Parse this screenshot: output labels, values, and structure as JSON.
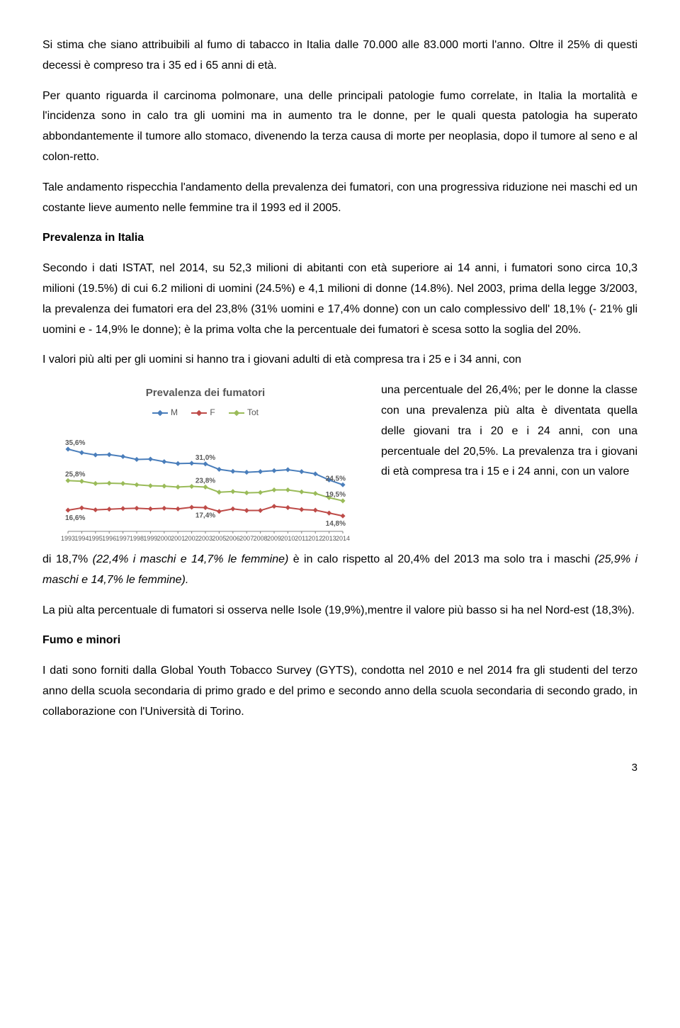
{
  "para1": "Si stima che siano attribuibili al fumo di tabacco in Italia dalle 70.000 alle 83.000 morti l'anno. Oltre il 25% di questi decessi è compreso tra i 35 ed i 65 anni di età.",
  "para2": "Per quanto riguarda il carcinoma polmonare, una delle principali patologie fumo correlate, in Italia la mortalità e l'incidenza sono in calo tra gli uomini ma in aumento tra le donne, per le quali questa patologia ha superato abbondantemente il tumore allo stomaco, divenendo la terza causa di morte per neoplasia, dopo il tumore al seno e al colon-retto.",
  "para3": "Tale andamento rispecchia l'andamento della prevalenza dei fumatori, con una progressiva riduzione nei maschi ed un costante lieve aumento nelle femmine tra il 1993 ed il 2005.",
  "title_prev": "Prevalenza in Italia",
  "para4a": "Secondo i dati ISTAT, nel 2014, su 52,3 milioni di abitanti con età superiore ai 14 anni, i fumatori sono circa 10,3 milioni (19.5%) di cui 6.2 milioni di uomini (24.5%) e 4,1 milioni di donne (14.8%). ",
  "para4b": "Nel 2003, prima della legge 3/2003, la prevalenza dei fumatori era del 23,8% (31% uomini e 17,4% donne) con un calo complessivo dell' 18,1% (- 21% gli uomini e - 14,9% le donne); è la prima volta che la percentuale dei fumatori è scesa sotto la soglia del 20%.",
  "para5_lead": "I valori più alti per gli uomini si hanno tra i giovani adulti di età compresa tra i 25 e i 34 anni, con ",
  "para5_wrap": "una percentuale del 26,4%; per le donne la classe con una prevalenza più alta è diventata quella delle giovani tra i 20 e i 24 anni, con una percentuale del 20,5%. La prevalenza tra i giovani di età compresa tra i 15 e i 24 anni, con un valore ",
  "para5_tail_a": "di 18,7% ",
  "para5_tail_b": "(22,4% i maschi e 14,7% le femmine)",
  "para5_tail_c": " è in calo rispetto al 20,4% del 2013 ma solo tra i maschi ",
  "para5_tail_d": "(25,9% i maschi e 14,7% le femmine).",
  "para6": "La più alta percentuale di fumatori si osserva nelle Isole (19,9%),mentre il valore più basso si ha nel Nord-est (18,3%).",
  "title_minori": "Fumo e minori",
  "para7": "I dati sono forniti dalla Global Youth Tobacco Survey (GYTS), condotta nel 2010 e nel 2014 fra gli studenti del terzo anno della scuola secondaria di primo grado e del primo e secondo anno della scuola secondaria di secondo grado, in collaborazione con l'Università di Torino.",
  "page_number": "3",
  "chart": {
    "title": "Prevalenza dei fumatori",
    "legend": {
      "m": "M",
      "f": "F",
      "tot": "Tot"
    },
    "colors": {
      "m": "#4a7ebb",
      "f": "#be4b48",
      "tot": "#9abb59",
      "axis": "#828282",
      "label": "#595959"
    },
    "years": [
      "1993",
      "1994",
      "1995",
      "1996",
      "1997",
      "1998",
      "1999",
      "2000",
      "2001",
      "2002",
      "2003",
      "2005",
      "2006",
      "2007",
      "2008",
      "2009",
      "2010",
      "2011",
      "2012",
      "2013",
      "2014"
    ],
    "series": {
      "m": [
        35.6,
        34.5,
        33.8,
        33.9,
        33.3,
        32.4,
        32.5,
        31.7,
        31.1,
        31.2,
        31.0,
        29.3,
        28.7,
        28.4,
        28.6,
        28.9,
        29.2,
        28.6,
        27.9,
        26.0,
        24.5
      ],
      "tot": [
        25.8,
        25.6,
        24.9,
        25.0,
        24.9,
        24.5,
        24.2,
        24.1,
        23.8,
        24.0,
        23.8,
        22.2,
        22.4,
        22.0,
        22.1,
        22.9,
        22.9,
        22.3,
        21.8,
        20.5,
        19.5
      ],
      "f": [
        16.6,
        17.3,
        16.7,
        16.9,
        17.1,
        17.2,
        17.0,
        17.2,
        17.0,
        17.5,
        17.4,
        16.2,
        17.0,
        16.5,
        16.5,
        17.8,
        17.4,
        16.8,
        16.6,
        15.7,
        14.8
      ]
    },
    "annotations": {
      "m_start": "35,6%",
      "tot_start": "25,8%",
      "f_start": "16,6%",
      "m_mid": "31,0%",
      "tot_mid": "23,8%",
      "f_mid": "17,4%",
      "m_end": "24,5%",
      "tot_end": "19,5%",
      "f_end": "14,8%"
    },
    "y_domain": [
      10,
      40
    ]
  }
}
